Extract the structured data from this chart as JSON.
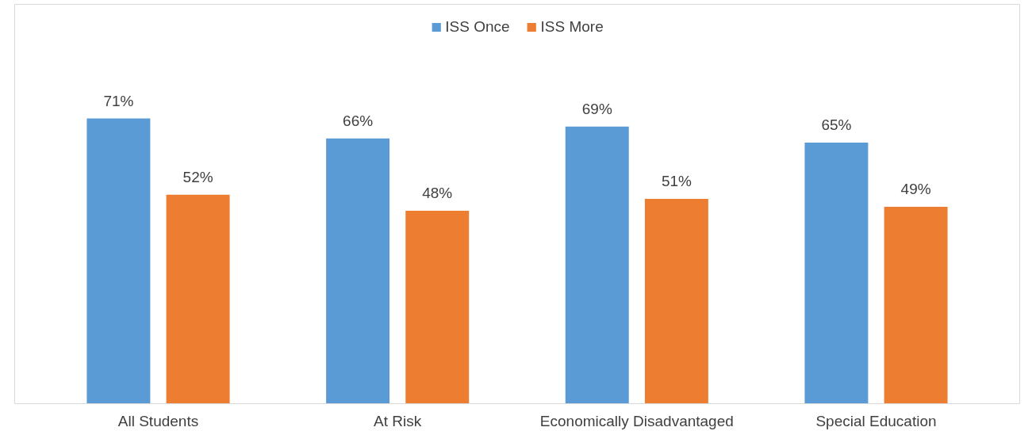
{
  "chart_data": {
    "type": "bar",
    "categories": [
      "All Students",
      "At Risk",
      "Economically Disadvantaged",
      "Special Education"
    ],
    "series": [
      {
        "name": "ISS Once",
        "color": "#5b9bd5",
        "values": [
          71,
          66,
          69,
          65
        ],
        "value_labels": [
          "71%",
          "66%",
          "69%",
          "65%"
        ]
      },
      {
        "name": "ISS More",
        "color": "#ed7d31",
        "values": [
          52,
          48,
          51,
          49
        ],
        "value_labels": [
          "52%",
          "48%",
          "51%",
          "49%"
        ]
      }
    ],
    "legend": "top",
    "grid": false
  }
}
